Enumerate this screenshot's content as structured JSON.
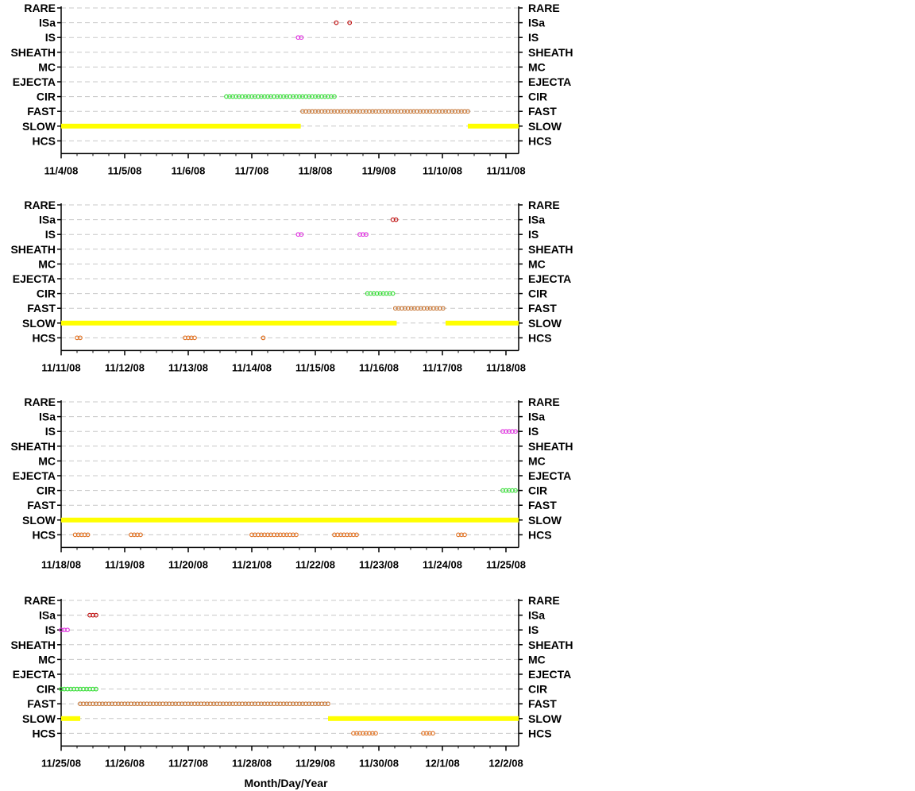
{
  "chart_data": {
    "type": "scatter",
    "categories": [
      "HCS",
      "SLOW",
      "FAST",
      "CIR",
      "EJECTA",
      "MC",
      "SHEATH",
      "IS",
      "ISa",
      "RARE"
    ],
    "series_colors": {
      "ISa": "#c01010",
      "IS": "#e030e0",
      "CIR": "#33dd33",
      "FAST": "#c87838",
      "SLOW": "#ffff00",
      "HCS": "#e07020"
    },
    "xlabel": "Month/Day/Year",
    "grid": "dashed horizontal",
    "panels": [
      {
        "x_ticks": [
          "11/4/08",
          "11/5/08",
          "11/6/08",
          "11/7/08",
          "11/8/08",
          "11/9/08",
          "11/10/08",
          "11/11/08"
        ],
        "segments": [
          {
            "category": "ISa",
            "style": "point",
            "days": [
              4.33
            ]
          },
          {
            "category": "ISa",
            "style": "point",
            "days": [
              4.54
            ]
          },
          {
            "category": "IS",
            "style": "dots",
            "from": 3.73,
            "to": 3.79
          },
          {
            "category": "CIR",
            "style": "dots",
            "from": 2.6,
            "to": 4.3
          },
          {
            "category": "FAST",
            "style": "dots",
            "from": 3.8,
            "to": 6.4
          },
          {
            "category": "SLOW",
            "style": "band",
            "from": 0.0,
            "to": 3.77
          },
          {
            "category": "SLOW",
            "style": "band",
            "from": 6.4,
            "to": 7.2
          }
        ]
      },
      {
        "x_ticks": [
          "11/11/08",
          "11/12/08",
          "11/13/08",
          "11/14/08",
          "11/15/08",
          "11/16/08",
          "11/17/08",
          "11/18/08"
        ],
        "segments": [
          {
            "category": "ISa",
            "style": "dots",
            "from": 5.22,
            "to": 5.3
          },
          {
            "category": "IS",
            "style": "dots",
            "from": 3.73,
            "to": 3.79
          },
          {
            "category": "IS",
            "style": "dots",
            "from": 4.7,
            "to": 4.82
          },
          {
            "category": "CIR",
            "style": "dots",
            "from": 4.82,
            "to": 5.25
          },
          {
            "category": "FAST",
            "style": "dots",
            "from": 5.26,
            "to": 6.05
          },
          {
            "category": "SLOW",
            "style": "band",
            "from": 0.0,
            "to": 5.28
          },
          {
            "category": "SLOW",
            "style": "band",
            "from": 6.05,
            "to": 7.2
          },
          {
            "category": "HCS",
            "style": "dots",
            "from": 0.25,
            "to": 0.3
          },
          {
            "category": "HCS",
            "style": "dots",
            "from": 1.95,
            "to": 2.1
          },
          {
            "category": "HCS",
            "style": "point",
            "days": [
              3.18
            ]
          }
        ]
      },
      {
        "x_ticks": [
          "11/18/08",
          "11/19/08",
          "11/20/08",
          "11/21/08",
          "11/22/08",
          "11/23/08",
          "11/24/08",
          "11/25/08"
        ],
        "segments": [
          {
            "category": "IS",
            "style": "dots",
            "from": 6.95,
            "to": 7.18
          },
          {
            "category": "CIR",
            "style": "dots",
            "from": 6.95,
            "to": 7.18
          },
          {
            "category": "SLOW",
            "style": "band",
            "from": 0.0,
            "to": 7.2
          },
          {
            "category": "HCS",
            "style": "dots",
            "from": 0.22,
            "to": 0.42
          },
          {
            "category": "HCS",
            "style": "dots",
            "from": 1.1,
            "to": 1.28
          },
          {
            "category": "HCS",
            "style": "dots",
            "from": 3.0,
            "to": 3.7
          },
          {
            "category": "HCS",
            "style": "dots",
            "from": 4.3,
            "to": 4.65
          },
          {
            "category": "HCS",
            "style": "dots",
            "from": 6.25,
            "to": 6.35
          }
        ]
      },
      {
        "x_ticks": [
          "11/25/08",
          "11/26/08",
          "11/27/08",
          "11/28/08",
          "11/29/08",
          "11/30/08",
          "12/1/08",
          "12/2/08"
        ],
        "segments": [
          {
            "category": "ISa",
            "style": "dots",
            "from": 0.45,
            "to": 0.57
          },
          {
            "category": "IS",
            "style": "dots",
            "from": 0.0,
            "to": 0.1
          },
          {
            "category": "CIR",
            "style": "dots",
            "from": 0.0,
            "to": 0.55
          },
          {
            "category": "FAST",
            "style": "dots",
            "from": 0.3,
            "to": 4.2
          },
          {
            "category": "SLOW",
            "style": "band",
            "from": 0.0,
            "to": 0.3
          },
          {
            "category": "SLOW",
            "style": "band",
            "from": 4.2,
            "to": 7.2
          },
          {
            "category": "HCS",
            "style": "dots",
            "from": 4.6,
            "to": 4.95
          },
          {
            "category": "HCS",
            "style": "dots",
            "from": 5.7,
            "to": 5.85
          }
        ]
      }
    ]
  }
}
